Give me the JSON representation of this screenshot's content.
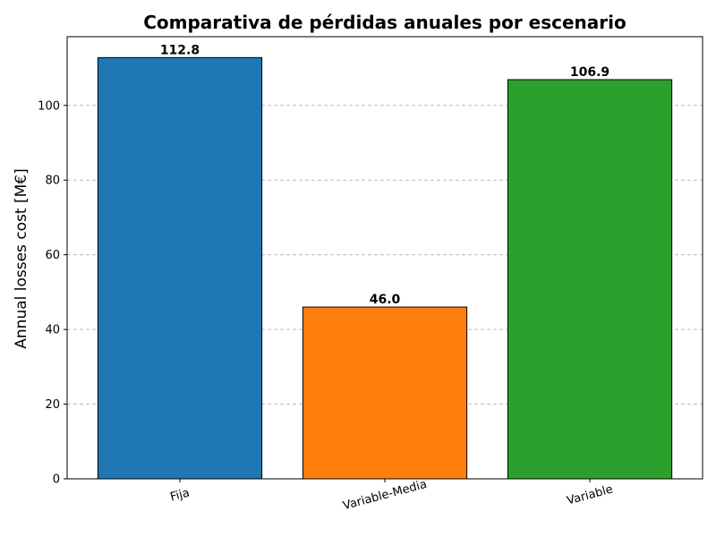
{
  "chart_data": {
    "type": "bar",
    "title": "Comparativa de pérdidas anuales por escenario",
    "xlabel": "",
    "ylabel": "Annual losses cost [M€]",
    "categories": [
      "Fija",
      "Variable-Media",
      "Variable"
    ],
    "values": [
      112.8,
      46.0,
      106.9
    ],
    "value_labels": [
      "112.8",
      "46.0",
      "106.9"
    ],
    "colors": [
      "#1f77b4",
      "#ff7f0e",
      "#2ca02c"
    ],
    "ylim": [
      0,
      118.4
    ],
    "yticks": [
      0,
      20,
      40,
      60,
      80,
      100
    ],
    "grid": "y-dashed",
    "legend": "none"
  }
}
